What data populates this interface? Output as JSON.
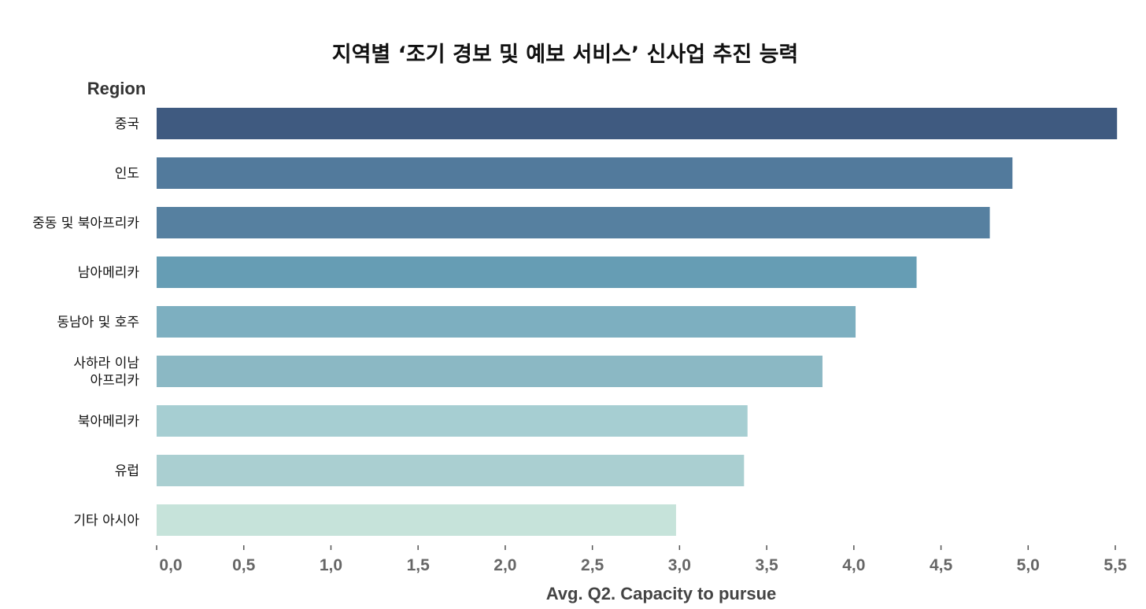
{
  "chart_data": {
    "type": "bar",
    "orientation": "horizontal",
    "title": "지역별 ‘조기 경보 및 예보 서비스’ 신사업 추진 능력",
    "ylabel": "Region",
    "xlabel": "Avg. Q2. Capacity to pursue",
    "categories": [
      "중국",
      "인도",
      "중동 및 북아프리카",
      "남아메리카",
      "동남아 및 호주",
      "사하라 이남\n아프리카",
      "북아메리카",
      "유럽",
      "기타 아시아"
    ],
    "values": [
      5.51,
      4.91,
      4.78,
      4.36,
      4.01,
      3.82,
      3.39,
      3.37,
      2.98
    ],
    "colors": [
      "#3f5a80",
      "#527a9c",
      "#5680a0",
      "#669db4",
      "#7dafc0",
      "#8bb8c4",
      "#a6ced2",
      "#aacfd1",
      "#c6e3da"
    ],
    "xlim": [
      0,
      5.5
    ],
    "xticks": [
      0,
      0.5,
      1.0,
      1.5,
      2.0,
      2.5,
      3.0,
      3.5,
      4.0,
      4.5,
      5.0,
      5.5
    ],
    "xtick_labels": [
      "0,0",
      "0,5",
      "1,0",
      "1,5",
      "2,0",
      "2,5",
      "3,0",
      "3,5",
      "4,0",
      "4,5",
      "5,0",
      "5,5"
    ],
    "grid": false,
    "legend": "none"
  }
}
